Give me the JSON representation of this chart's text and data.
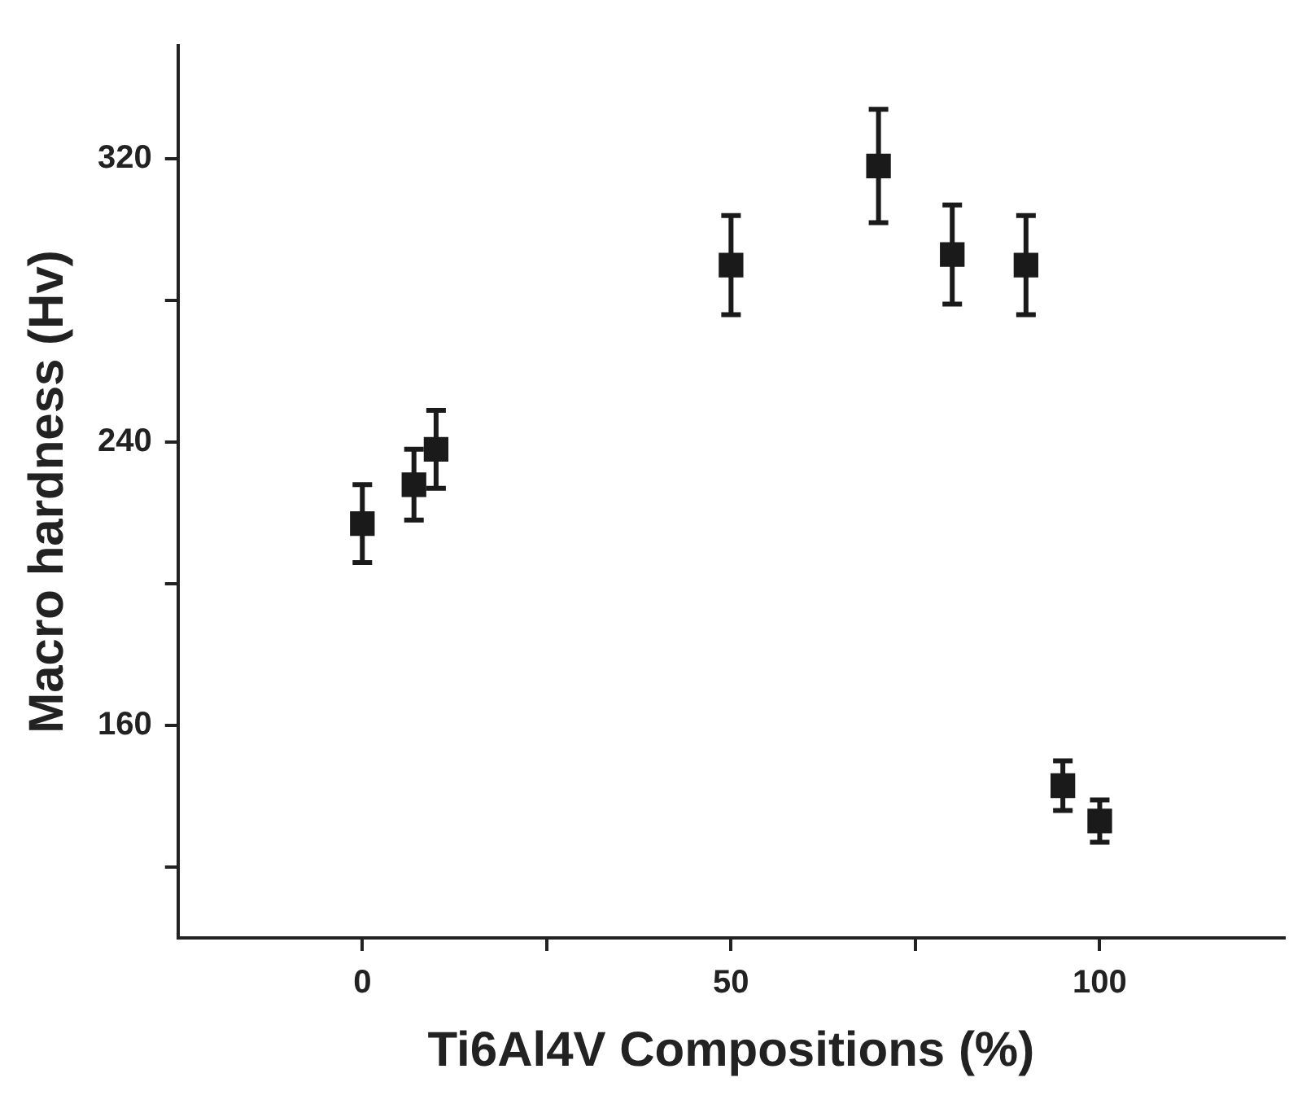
{
  "chart_data": {
    "type": "scatter",
    "xlabel": "Ti6Al4V Compositions (%)",
    "ylabel": "Macro hardness (Hv)",
    "x": [
      0,
      7,
      10,
      50,
      70,
      80,
      90,
      95,
      100
    ],
    "series": [
      {
        "color": "#1a1a1a",
        "values": [
          217,
          228,
          238,
          290,
          318,
          293,
          290,
          143,
          133
        ],
        "errors": [
          11,
          10,
          11,
          14,
          16,
          14,
          14,
          7,
          6
        ]
      }
    ],
    "marker": "square",
    "xlim": [
      -25,
      125
    ],
    "xticks": [
      0,
      {
        "value": 25,
        "label": null
      },
      50,
      {
        "value": 75,
        "label": null
      },
      100
    ],
    "ylim": [
      100,
      352
    ],
    "yticks": [
      {
        "value": 120,
        "label": null
      },
      160,
      {
        "value": 200,
        "label": null
      },
      240,
      {
        "value": 280,
        "label": null
      },
      320
    ]
  }
}
